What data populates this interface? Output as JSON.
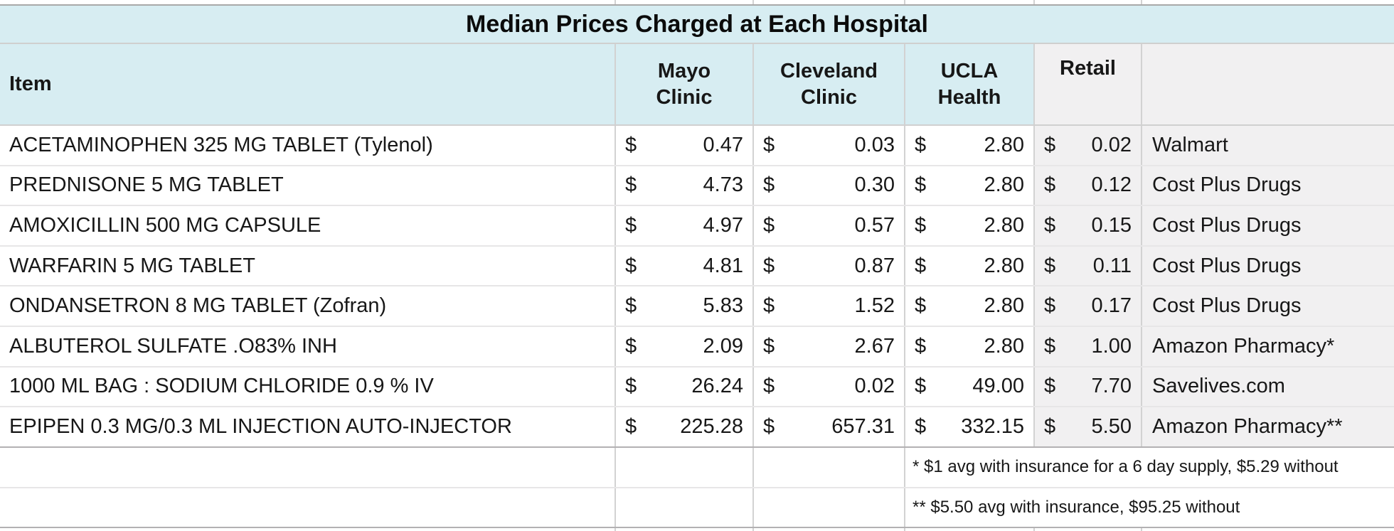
{
  "title": "Median Prices Charged at Each Hospital",
  "colors": {
    "header_blue": "#d7edf2",
    "shaded_gray": "#f1f0f1",
    "grid_line": "#d2d2d2",
    "heavy_line": "#b3b1b3",
    "text": "#171717"
  },
  "table": {
    "currency": "$",
    "header": {
      "item": "Item",
      "mayo": "Mayo Clinic",
      "cleveland": "Cleveland Clinic",
      "ucla": "UCLA Health",
      "retail": "Retail",
      "retailer": ""
    },
    "rows": [
      {
        "item": "ACETAMINOPHEN 325 MG TABLET (Tylenol)",
        "mayo": "0.47",
        "cleveland": "0.03",
        "ucla": "2.80",
        "retail": "0.02",
        "retailer": "Walmart"
      },
      {
        "item": "PREDNISONE 5 MG TABLET",
        "mayo": "4.73",
        "cleveland": "0.30",
        "ucla": "2.80",
        "retail": "0.12",
        "retailer": "Cost Plus Drugs"
      },
      {
        "item": "AMOXICILLIN 500 MG CAPSULE",
        "mayo": "4.97",
        "cleveland": "0.57",
        "ucla": "2.80",
        "retail": "0.15",
        "retailer": "Cost Plus Drugs"
      },
      {
        "item": "WARFARIN 5 MG TABLET",
        "mayo": "4.81",
        "cleveland": "0.87",
        "ucla": "2.80",
        "retail": "0.11",
        "retailer": "Cost Plus Drugs"
      },
      {
        "item": "ONDANSETRON 8 MG TABLET (Zofran)",
        "mayo": "5.83",
        "cleveland": "1.52",
        "ucla": "2.80",
        "retail": "0.17",
        "retailer": "Cost Plus Drugs"
      },
      {
        "item": "ALBUTEROL SULFATE .O83% INH",
        "mayo": "2.09",
        "cleveland": "2.67",
        "ucla": "2.80",
        "retail": "1.00",
        "retailer": "Amazon Pharmacy*"
      },
      {
        "item": "1000 ML BAG : SODIUM CHLORIDE 0.9 % IV",
        "mayo": "26.24",
        "cleveland": "0.02",
        "ucla": "49.00",
        "retail": "7.70",
        "retailer": "Savelives.com"
      },
      {
        "item": "EPIPEN 0.3 MG/0.3 ML INJECTION AUTO-INJECTOR",
        "mayo": "225.28",
        "cleveland": "657.31",
        "ucla": "332.15",
        "retail": "5.50",
        "retailer": "Amazon Pharmacy**"
      }
    ],
    "footnotes": [
      "* $1 avg with insurance for a 6 day supply, $5.29 without",
      "** $5.50 avg with insurance, $95.25 without"
    ]
  },
  "chart_data": {
    "type": "table",
    "title": "Median Prices Charged at Each Hospital",
    "columns": [
      "Item",
      "Mayo Clinic",
      "Cleveland Clinic",
      "UCLA Health",
      "Retail",
      ""
    ],
    "rows": [
      [
        "ACETAMINOPHEN 325 MG TABLET (Tylenol)",
        0.47,
        0.03,
        2.8,
        0.02,
        "Walmart"
      ],
      [
        "PREDNISONE 5 MG TABLET",
        4.73,
        0.3,
        2.8,
        0.12,
        "Cost Plus Drugs"
      ],
      [
        "AMOXICILLIN 500 MG CAPSULE",
        4.97,
        0.57,
        2.8,
        0.15,
        "Cost Plus Drugs"
      ],
      [
        "WARFARIN 5 MG TABLET",
        4.81,
        0.87,
        2.8,
        0.11,
        "Cost Plus Drugs"
      ],
      [
        "ONDANSETRON 8 MG TABLET (Zofran)",
        5.83,
        1.52,
        2.8,
        0.17,
        "Cost Plus Drugs"
      ],
      [
        "ALBUTEROL SULFATE .O83% INH",
        2.09,
        2.67,
        2.8,
        1.0,
        "Amazon Pharmacy*"
      ],
      [
        "1000 ML BAG : SODIUM CHLORIDE 0.9 % IV",
        26.24,
        0.02,
        49.0,
        7.7,
        "Savelives.com"
      ],
      [
        "EPIPEN 0.3 MG/0.3 ML INJECTION AUTO-INJECTOR",
        225.28,
        657.31,
        332.15,
        5.5,
        "Amazon Pharmacy**"
      ]
    ],
    "units": "USD",
    "footnotes": [
      "* $1 avg with insurance for a 6 day supply, $5.29 without",
      "** $5.50 avg with insurance, $95.25 without"
    ]
  }
}
